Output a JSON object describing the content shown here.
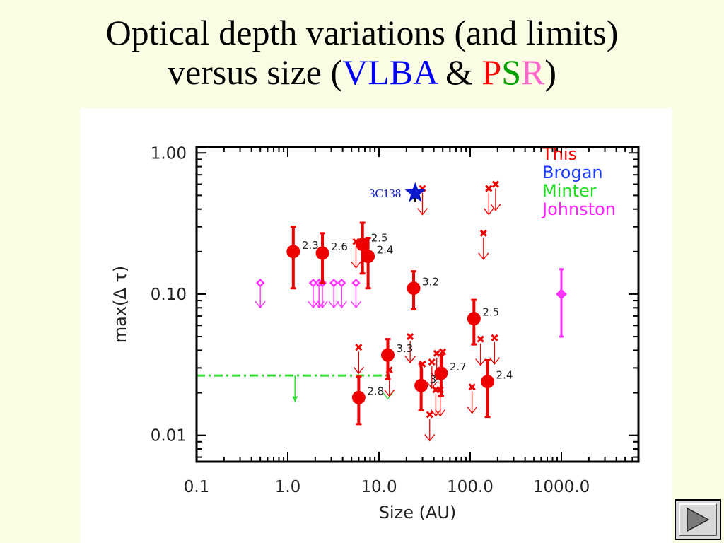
{
  "slide": {
    "title_line1": "Optical depth variations (and limits)",
    "title_line2_prefix": "versus size (",
    "title_vlba": "VLBA",
    "title_amp": " & ",
    "title_psr_p": "P",
    "title_psr_s": "S",
    "title_psr_r": "R",
    "title_close": ")"
  },
  "nav": {
    "icon": "play-forward-icon"
  },
  "chart_data": {
    "type": "scatter",
    "xlabel": "Size (AU)",
    "ylabel": "max(Δ τ)",
    "xscale": "log",
    "yscale": "log",
    "xlim": [
      0.1,
      7000
    ],
    "ylim": [
      0.0065,
      1.1
    ],
    "xticks": [
      0.1,
      1,
      10,
      100,
      1000
    ],
    "xtick_labels": [
      "0.1",
      "1.0",
      "10.0",
      "100.0",
      "1000.0"
    ],
    "yticks": [
      0.01,
      0.1,
      1
    ],
    "ytick_labels": [
      "0.01",
      "0.10",
      "1.00"
    ],
    "legend": {
      "position": "top-right",
      "entries": [
        {
          "label": "This",
          "color": "#ff0000"
        },
        {
          "label": "Brogan",
          "color": "#1a3cff"
        },
        {
          "label": "Minter",
          "color": "#22dd22"
        },
        {
          "label": "Johnston",
          "color": "#ff22ff"
        }
      ]
    },
    "colors": {
      "this": "#ee0000",
      "brogan": "#0a1acc",
      "minter": "#33dd33",
      "johnston": "#ff33ff"
    },
    "annotations": [
      {
        "text": "3C138",
        "x": 25,
        "y": 0.52,
        "color": "#0a1acc"
      }
    ],
    "series": [
      {
        "name": "This",
        "kind": "detections",
        "points": [
          {
            "x": 1.15,
            "y": 0.2,
            "ylo": 0.11,
            "yhi": 0.3,
            "label": "2.3"
          },
          {
            "x": 2.4,
            "y": 0.195,
            "ylo": 0.12,
            "yhi": 0.27,
            "label": "2.6"
          },
          {
            "x": 6.6,
            "y": 0.225,
            "ylo": 0.14,
            "yhi": 0.32,
            "label": "2.5"
          },
          {
            "x": 7.6,
            "y": 0.185,
            "ylo": 0.11,
            "yhi": 0.25,
            "label": "2.4"
          },
          {
            "x": 24,
            "y": 0.11,
            "ylo": 0.078,
            "yhi": 0.145,
            "label": "3.2"
          },
          {
            "x": 110,
            "y": 0.067,
            "ylo": 0.044,
            "yhi": 0.091,
            "label": "2.5"
          },
          {
            "x": 12.5,
            "y": 0.037,
            "ylo": 0.025,
            "yhi": 0.048,
            "label": "3.3"
          },
          {
            "x": 6,
            "y": 0.0185,
            "ylo": 0.012,
            "yhi": 0.026,
            "label": "2.8"
          },
          {
            "x": 29,
            "y": 0.0225,
            "ylo": 0.015,
            "yhi": 0.032,
            "label": "3."
          },
          {
            "x": 48,
            "y": 0.0275,
            "ylo": 0.019,
            "yhi": 0.037,
            "label": "2.7"
          },
          {
            "x": 155,
            "y": 0.024,
            "ylo": 0.0135,
            "yhi": 0.034,
            "label": "2.4"
          }
        ]
      },
      {
        "name": "This",
        "kind": "upper_limits",
        "points": [
          {
            "x": 5.6,
            "y": 0.235
          },
          {
            "x": 30,
            "y": 0.56
          },
          {
            "x": 160,
            "y": 0.56
          },
          {
            "x": 190,
            "y": 0.6
          },
          {
            "x": 140,
            "y": 0.27
          },
          {
            "x": 6,
            "y": 0.042
          },
          {
            "x": 22,
            "y": 0.05
          },
          {
            "x": 13,
            "y": 0.029
          },
          {
            "x": 30,
            "y": 0.032
          },
          {
            "x": 38,
            "y": 0.033
          },
          {
            "x": 43,
            "y": 0.038
          },
          {
            "x": 50,
            "y": 0.039
          },
          {
            "x": 42,
            "y": 0.021
          },
          {
            "x": 47,
            "y": 0.021
          },
          {
            "x": 36,
            "y": 0.014
          },
          {
            "x": 105,
            "y": 0.022
          },
          {
            "x": 130,
            "y": 0.048
          },
          {
            "x": 185,
            "y": 0.049
          }
        ]
      },
      {
        "name": "Brogan",
        "kind": "detections",
        "points": [
          {
            "x": 25,
            "y": 0.52,
            "ylo": 0.45,
            "yhi": 0.58
          }
        ]
      },
      {
        "name": "Minter",
        "kind": "upper_limits",
        "points": [
          {
            "x": 12.5,
            "y": 0.0265
          }
        ],
        "limit_line": {
          "x_from": 0.1,
          "x_to": 12.5,
          "y": 0.0265
        },
        "limit_arrow": {
          "x": 1.2,
          "y_from": 0.0265,
          "y_to": 0.0172
        }
      },
      {
        "name": "Johnston",
        "kind": "upper_limits",
        "points": [
          {
            "x": 0.5,
            "y": 0.12
          },
          {
            "x": 1.9,
            "y": 0.12
          },
          {
            "x": 2.2,
            "y": 0.12
          },
          {
            "x": 2.4,
            "y": 0.12
          },
          {
            "x": 3.2,
            "y": 0.12
          },
          {
            "x": 3.9,
            "y": 0.12
          },
          {
            "x": 5.6,
            "y": 0.12
          }
        ]
      },
      {
        "name": "Johnston",
        "kind": "detections",
        "points": [
          {
            "x": 1000,
            "y": 0.1,
            "ylo": 0.05,
            "yhi": 0.15
          }
        ]
      }
    ]
  }
}
